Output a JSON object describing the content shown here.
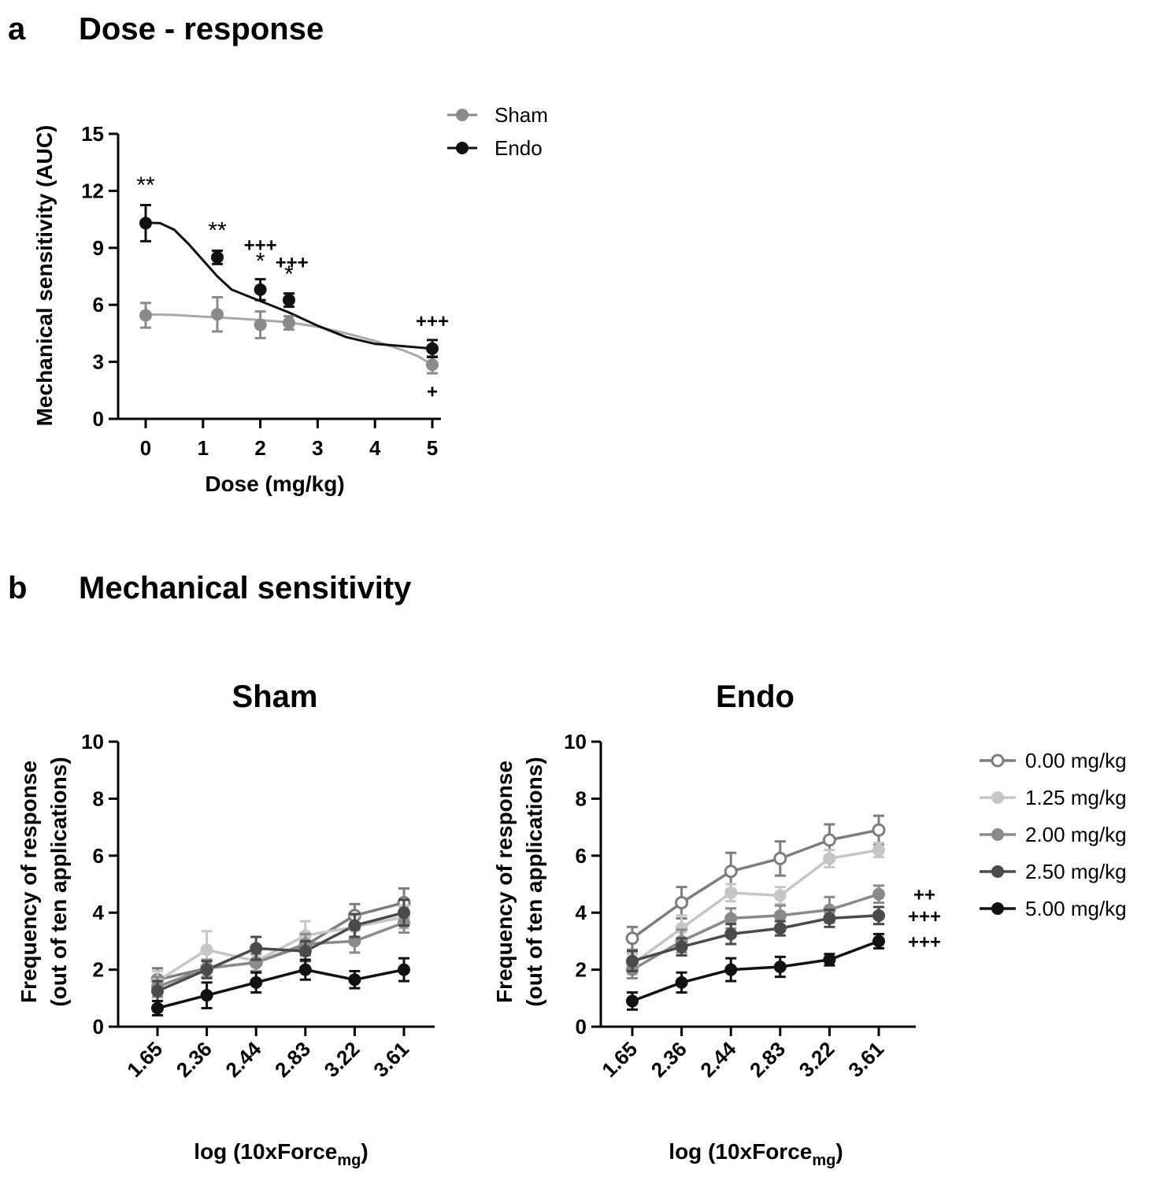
{
  "panels": {
    "a": {
      "label": "a",
      "title": "Dose - response"
    },
    "b": {
      "label": "b",
      "title": "Mechanical sensitivity"
    }
  },
  "chart_data": [
    {
      "id": "a",
      "type": "line",
      "title": "Dose - response",
      "xlabel": "Dose (mg/kg)",
      "ylabel": "Mechanical sensitivity (AUC)",
      "xlim": [
        0,
        5
      ],
      "ylim": [
        0,
        15
      ],
      "xticks": [
        0,
        1,
        2,
        3,
        4,
        5
      ],
      "yticks": [
        0,
        3,
        6,
        9,
        12,
        15
      ],
      "legend_position": "top-right",
      "series": [
        {
          "name": "Sham",
          "color": "#8a8a8a",
          "curve_color": "#a9a9a9",
          "x": [
            0,
            1.25,
            2,
            2.5,
            5
          ],
          "y": [
            5.45,
            5.5,
            4.95,
            5.05,
            2.85
          ],
          "err": [
            0.65,
            0.9,
            0.7,
            0.35,
            0.45
          ],
          "fit": [
            5.5,
            5.47,
            5.38,
            5.3,
            5.2,
            5.08,
            4.85,
            4.5,
            4.1,
            3.6,
            3.3,
            2.85
          ]
        },
        {
          "name": "Endo",
          "color": "#111111",
          "curve_color": "#111111",
          "x": [
            0,
            1.25,
            2,
            2.5,
            5
          ],
          "y": [
            10.3,
            8.5,
            6.8,
            6.25,
            3.7
          ],
          "err": [
            0.95,
            0.35,
            0.55,
            0.35,
            0.45
          ],
          "fit": [
            10.32,
            10.3,
            9.95,
            9.2,
            8.35,
            7.5,
            6.8,
            6.2,
            5.6,
            4.9,
            4.3,
            3.95,
            3.7
          ]
        }
      ],
      "fit_x_sham": [
        0,
        0.5,
        1,
        1.5,
        2,
        2.5,
        3,
        3.5,
        4,
        4.5,
        4.75,
        5
      ],
      "fit_x_endo": [
        0,
        0.25,
        0.5,
        0.75,
        1,
        1.25,
        1.5,
        2,
        2.5,
        3,
        3.5,
        4,
        5
      ],
      "annotations": [
        {
          "text": "**",
          "x": 0,
          "y": 11.9,
          "style": "ann"
        },
        {
          "text": "**",
          "x": 1.25,
          "y": 9.5,
          "style": "ann"
        },
        {
          "text": "+++",
          "x": 2,
          "y": 8.8,
          "style": "annb"
        },
        {
          "text": "*",
          "x": 2,
          "y": 7.9,
          "style": "ann"
        },
        {
          "text": "+++",
          "x": 2.55,
          "y": 7.9,
          "style": "annb"
        },
        {
          "text": "*",
          "x": 2.5,
          "y": 7.2,
          "style": "ann"
        },
        {
          "text": "+++",
          "x": 5,
          "y": 4.8,
          "style": "annb"
        },
        {
          "text": "+",
          "x": 5,
          "y": 1.1,
          "style": "annb"
        }
      ]
    },
    {
      "id": "b-sham",
      "type": "line",
      "title": "Sham",
      "xlabel": "log (10xForce",
      "xlabel_sub": "mg",
      "xlabel_close": ")",
      "ylabel_line1": "Frequency of response",
      "ylabel_line2": "(out of ten applications)",
      "categories": [
        "1.65",
        "2.36",
        "2.44",
        "2.83",
        "3.22",
        "3.61"
      ],
      "ylim": [
        0,
        10
      ],
      "yticks": [
        0,
        2,
        4,
        6,
        8,
        10
      ],
      "series": [
        {
          "name": "0.00 mg/kg",
          "color": "#7d7d7d",
          "open": true,
          "values": [
            1.65,
            2.05,
            2.25,
            2.85,
            3.9,
            4.35
          ],
          "err": [
            0.4,
            0.3,
            0.3,
            0.35,
            0.4,
            0.5
          ]
        },
        {
          "name": "1.25 mg/kg",
          "color": "#c6c6c6",
          "open": false,
          "values": [
            1.6,
            2.7,
            2.3,
            3.2,
            3.5,
            3.85
          ],
          "err": [
            0.35,
            0.65,
            0.35,
            0.5,
            0.4,
            0.4
          ]
        },
        {
          "name": "2.00 mg/kg",
          "color": "#8a8a8a",
          "open": false,
          "values": [
            1.4,
            2.05,
            2.25,
            2.9,
            3.0,
            3.65
          ],
          "err": [
            0.35,
            0.3,
            0.3,
            0.35,
            0.4,
            0.35
          ]
        },
        {
          "name": "2.50 mg/kg",
          "color": "#4a4a4a",
          "open": false,
          "values": [
            1.25,
            2.0,
            2.75,
            2.65,
            3.55,
            4.0
          ],
          "err": [
            0.35,
            0.3,
            0.4,
            0.35,
            0.4,
            0.45
          ]
        },
        {
          "name": "5.00 mg/kg",
          "color": "#111111",
          "open": false,
          "values": [
            0.65,
            1.1,
            1.55,
            2.0,
            1.65,
            2.0
          ],
          "err": [
            0.25,
            0.45,
            0.35,
            0.35,
            0.3,
            0.4
          ]
        }
      ]
    },
    {
      "id": "b-endo",
      "type": "line",
      "title": "Endo",
      "xlabel": "log (10xForce",
      "xlabel_sub": "mg",
      "xlabel_close": ")",
      "ylabel_line1": "Frequency of response",
      "ylabel_line2": "(out of ten applications)",
      "categories": [
        "1.65",
        "2.36",
        "2.44",
        "2.83",
        "3.22",
        "3.61"
      ],
      "ylim": [
        0,
        10
      ],
      "yticks": [
        0,
        2,
        4,
        6,
        8,
        10
      ],
      "series": [
        {
          "name": "0.00 mg/kg",
          "color": "#7d7d7d",
          "open": true,
          "values": [
            3.1,
            4.35,
            5.45,
            5.9,
            6.55,
            6.9
          ],
          "err": [
            0.4,
            0.55,
            0.65,
            0.6,
            0.55,
            0.5
          ]
        },
        {
          "name": "1.25 mg/kg",
          "color": "#c6c6c6",
          "open": false,
          "values": [
            2.2,
            3.45,
            4.7,
            4.6,
            5.9,
            6.2
          ],
          "err": [
            0.35,
            0.45,
            0.3,
            0.3,
            0.3,
            0.25
          ]
        },
        {
          "name": "2.00 mg/kg",
          "color": "#8a8a8a",
          "open": false,
          "values": [
            2.0,
            3.0,
            3.8,
            3.9,
            4.1,
            4.65
          ],
          "err": [
            0.3,
            0.4,
            0.35,
            0.35,
            0.45,
            0.3
          ]
        },
        {
          "name": "2.50 mg/kg",
          "color": "#4a4a4a",
          "open": false,
          "values": [
            2.3,
            2.8,
            3.25,
            3.45,
            3.8,
            3.9
          ],
          "err": [
            0.35,
            0.3,
            0.35,
            0.25,
            0.3,
            0.3
          ]
        },
        {
          "name": "5.00 mg/kg",
          "color": "#111111",
          "open": false,
          "values": [
            0.9,
            1.55,
            2.0,
            2.1,
            2.35,
            3.0
          ],
          "err": [
            0.3,
            0.35,
            0.4,
            0.35,
            0.2,
            0.25
          ]
        }
      ],
      "annotations": [
        {
          "text": "++",
          "series": "2.00 mg/kg"
        },
        {
          "text": "+++",
          "series": "2.50 mg/kg"
        },
        {
          "text": "+++",
          "series": "5.00 mg/kg"
        }
      ]
    }
  ]
}
